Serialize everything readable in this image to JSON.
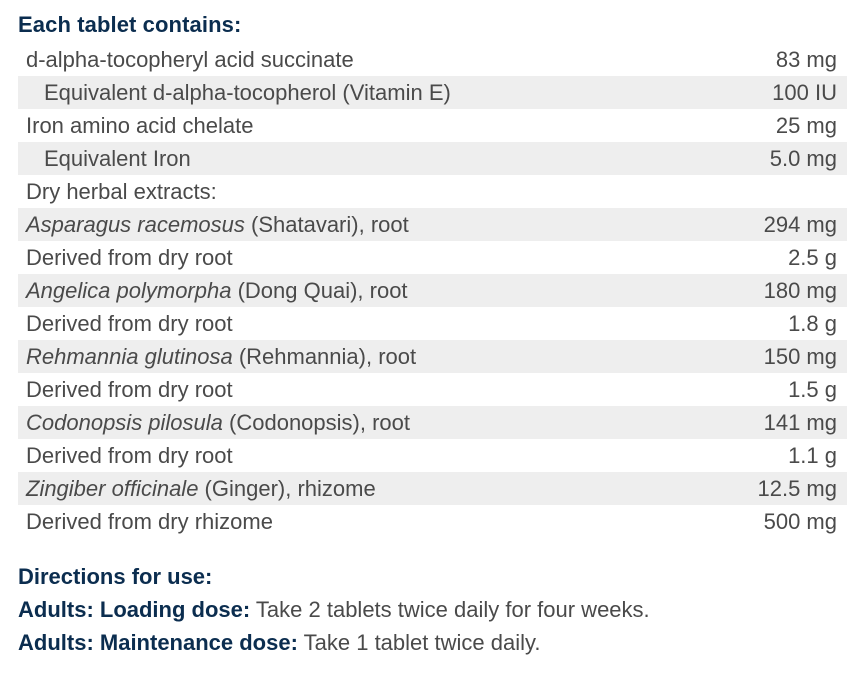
{
  "heading": "Each tablet contains:",
  "rows": [
    {
      "latin": "",
      "name": "d-alpha-tocopheryl acid succinate",
      "amount": "83 mg"
    },
    {
      "latin": "",
      "name": "Equivalent d-alpha-tocopherol (Vitamin E)",
      "amount": "100 IU"
    },
    {
      "latin": "",
      "name": "Iron amino acid chelate",
      "amount": "25 mg"
    },
    {
      "latin": "",
      "name": "Equivalent Iron",
      "amount": "5.0 mg"
    },
    {
      "latin": "",
      "name": "Dry herbal extracts:",
      "amount": ""
    },
    {
      "latin": "Asparagus racemosus",
      "name": " (Shatavari), root",
      "amount": "294 mg"
    },
    {
      "latin": "",
      "name": "Derived from dry root",
      "amount": "2.5 g"
    },
    {
      "latin": "Angelica polymorpha",
      "name": " (Dong Quai), root",
      "amount": "180 mg"
    },
    {
      "latin": "",
      "name": "Derived from dry root",
      "amount": "1.8 g"
    },
    {
      "latin": "Rehmannia glutinosa",
      "name": " (Rehmannia), root",
      "amount": "150 mg"
    },
    {
      "latin": "",
      "name": "Derived from dry root",
      "amount": "1.5 g"
    },
    {
      "latin": "Codonopsis pilosula",
      "name": " (Codonopsis), root",
      "amount": "141 mg"
    },
    {
      "latin": "",
      "name": "Derived from dry root",
      "amount": "1.1 g"
    },
    {
      "latin": "Zingiber officinale",
      "name": " (Ginger), rhizome",
      "amount": "12.5 mg"
    },
    {
      "latin": "",
      "name": "Derived from dry rhizome",
      "amount": "500 mg"
    }
  ],
  "directions": {
    "heading": "Directions for use:",
    "loading_label": "Adults: Loading dose:",
    "loading_text": " Take 2 tablets twice daily for four weeks.",
    "maintenance_label": "Adults: Maintenance dose:",
    "maintenance_text": " Take 1 tablet twice daily."
  }
}
